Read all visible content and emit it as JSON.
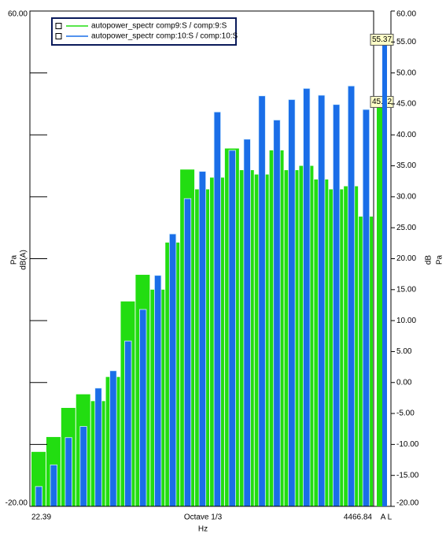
{
  "chart_data": {
    "type": "bar",
    "ylabel": [
      "Pa",
      "dB(A)"
    ],
    "y2label": [
      "dB",
      "Pa"
    ],
    "xlabel": "Hz",
    "x_center_label": "Octave 1/3",
    "x_end_labels": [
      "22.39",
      "4466.84"
    ],
    "ylim": [
      -20,
      60
    ],
    "yticks": [
      {
        "value": 60,
        "label": "60.00"
      },
      {
        "value": 50,
        "label": null
      },
      {
        "value": 40,
        "label": null
      },
      {
        "value": 30,
        "label": null
      },
      {
        "value": 20,
        "label": null
      },
      {
        "value": 10,
        "label": null
      },
      {
        "value": 0,
        "label": null
      },
      {
        "value": -10,
        "label": null
      },
      {
        "value": -20,
        "label": "-20.00"
      }
    ],
    "y2lim": [
      -20,
      60
    ],
    "y2ticks": [
      {
        "value": 60,
        "label": "60.00"
      },
      {
        "value": 55,
        "label": "55.00"
      },
      {
        "value": 50,
        "label": "50.00"
      },
      {
        "value": 45,
        "label": "45.00"
      },
      {
        "value": 40,
        "label": "40.00"
      },
      {
        "value": 35,
        "label": "35.00"
      },
      {
        "value": 30,
        "label": "30.00"
      },
      {
        "value": 25,
        "label": "25.00"
      },
      {
        "value": 20,
        "label": "20.00"
      },
      {
        "value": 15,
        "label": "15.00"
      },
      {
        "value": 10,
        "label": "10.00"
      },
      {
        "value": 5,
        "label": "5.00"
      },
      {
        "value": 0,
        "label": "0.00"
      },
      {
        "value": -5,
        "label": "-5.00"
      },
      {
        "value": -10,
        "label": "-10.00"
      },
      {
        "value": -15,
        "label": "-15.00"
      },
      {
        "value": -20,
        "label": "-20.00"
      }
    ],
    "series": [
      {
        "name": "autopower_spectr comp9:S / comp:9:S",
        "color": "#22dd11",
        "values": [
          -11.2,
          -8.8,
          -4.1,
          -1.9,
          -3.0,
          0.9,
          13.1,
          17.4,
          15.0,
          22.6,
          34.4,
          31.2,
          33.1,
          37.8,
          34.3,
          33.6,
          37.5,
          34.3,
          35.0,
          32.8,
          31.2,
          31.7,
          26.8
        ]
      },
      {
        "name": "autopower_spectr comp:10:S / comp:10:S",
        "color": "#1a6ee8",
        "values": [
          -16.8,
          -13.3,
          -8.9,
          -7.1,
          -0.9,
          1.9,
          6.7,
          11.8,
          17.3,
          24.0,
          29.7,
          34.1,
          43.7,
          37.5,
          39.3,
          46.3,
          42.4,
          45.7,
          47.5,
          46.4,
          44.9,
          47.9,
          44.1
        ]
      }
    ],
    "overall": {
      "label": "A L",
      "values": [
        45.32,
        55.37
      ]
    }
  }
}
